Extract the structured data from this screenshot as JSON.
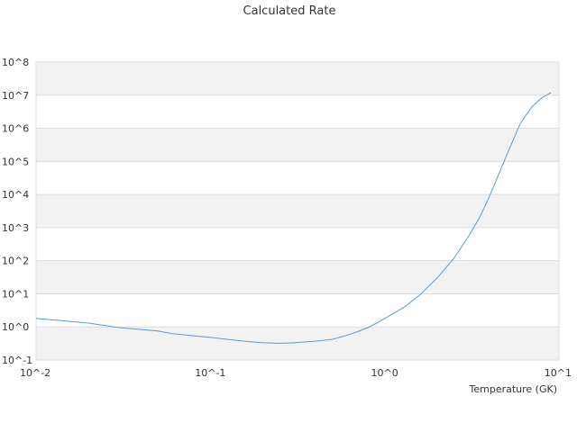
{
  "chart_data": {
    "type": "line",
    "title": "Calculated Rate",
    "xlabel": "Temperature (GK)",
    "ylabel": "",
    "x_scale": "log",
    "y_scale": "log",
    "xlim": [
      0.01,
      10
    ],
    "ylim": [
      0.1,
      100000000
    ],
    "grid": "horizontal alternating bands",
    "legend": "none",
    "x_ticks": [
      {
        "value": 0.01,
        "label": "10^-2"
      },
      {
        "value": 0.1,
        "label": "10^-1"
      },
      {
        "value": 1,
        "label": "10^0"
      },
      {
        "value": 10,
        "label": "10^1"
      }
    ],
    "y_ticks": [
      {
        "value": 0.1,
        "label": "10^-1"
      },
      {
        "value": 1,
        "label": "10^0"
      },
      {
        "value": 10,
        "label": "10^1"
      },
      {
        "value": 100,
        "label": "10^2"
      },
      {
        "value": 1000,
        "label": "10^3"
      },
      {
        "value": 10000,
        "label": "10^4"
      },
      {
        "value": 100000,
        "label": "10^5"
      },
      {
        "value": 1000000,
        "label": "10^6"
      },
      {
        "value": 10000000,
        "label": "10^7"
      },
      {
        "value": 100000000,
        "label": "10^8"
      }
    ],
    "colors": {
      "line": "#5b9bd5",
      "band": "#f2f2f2",
      "grid": "#dddddd"
    },
    "series": [
      {
        "x": [
          0.01,
          0.02,
          0.03,
          0.05,
          0.06,
          0.08,
          0.1,
          0.15,
          0.2,
          0.25,
          0.3,
          0.4,
          0.5,
          0.6,
          0.7,
          0.8,
          0.9,
          1.0,
          1.3,
          1.6,
          2.0,
          2.5,
          3.0,
          3.5,
          4.0,
          5.0,
          6.0,
          7.0,
          8.0,
          9.0
        ],
        "y": [
          1.8,
          1.3,
          0.95,
          0.75,
          0.63,
          0.54,
          0.48,
          0.38,
          0.33,
          0.32,
          0.33,
          0.37,
          0.42,
          0.55,
          0.72,
          0.95,
          1.3,
          1.8,
          4.0,
          9.5,
          30,
          120,
          500,
          2000,
          9000,
          150000,
          1400000,
          4500000,
          8500000,
          12000000
        ]
      }
    ]
  }
}
